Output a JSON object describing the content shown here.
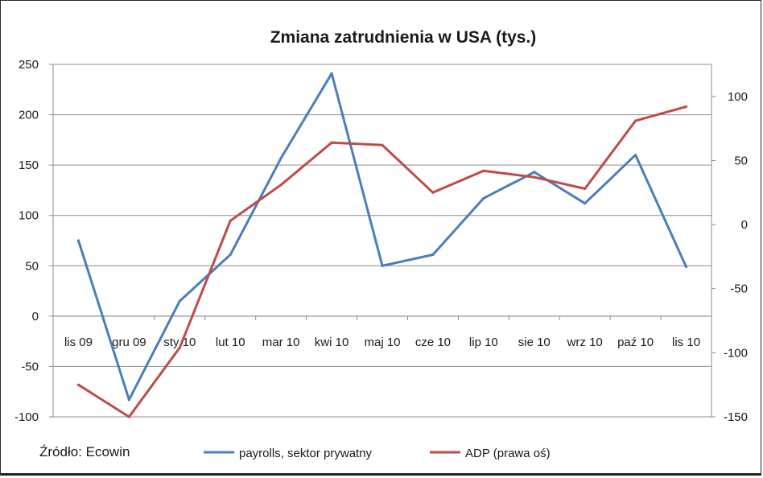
{
  "chart_data": {
    "type": "line",
    "title": "Zmiana zatrudnienia w USA (tys.)",
    "source": "Źródło: Ecowin",
    "categories": [
      "lis 09",
      "gru 09",
      "sty 10",
      "lut 10",
      "mar 10",
      "kwi 10",
      "maj 10",
      "cze 10",
      "lip 10",
      "sie 10",
      "wrz 10",
      "paź 10",
      "lis 10"
    ],
    "ylim": [
      -100,
      250
    ],
    "y_ticks": [
      250,
      200,
      150,
      100,
      50,
      0,
      -50,
      -100
    ],
    "y2lim": [
      -150,
      125
    ],
    "y2_ticks": [
      100,
      50,
      0,
      -50,
      -100,
      -150
    ],
    "grid": true,
    "legend_position": "bottom",
    "series": [
      {
        "name": "payrolls, sektor prywatny",
        "axis": "left",
        "color": "#4a7ebb",
        "values": [
          75,
          -83,
          15,
          61,
          157,
          241,
          50,
          61,
          117,
          143,
          112,
          160,
          49
        ]
      },
      {
        "name": "ADP (prawa oś)",
        "axis": "right",
        "color": "#be4b48",
        "values": [
          -125,
          -150,
          -96,
          3,
          31,
          64,
          62,
          25,
          42,
          37,
          28,
          81,
          92
        ]
      }
    ]
  }
}
